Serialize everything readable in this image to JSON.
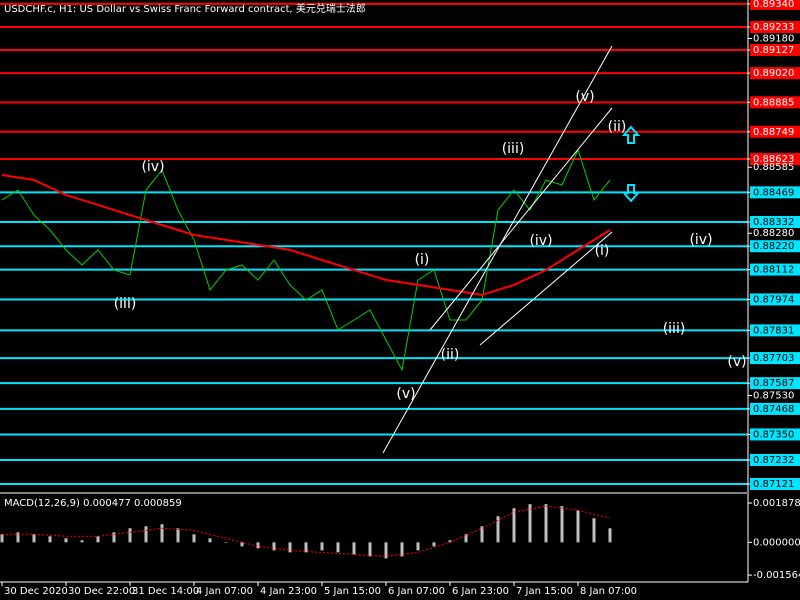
{
  "chart_data": [
    {
      "type": "line",
      "title": "USDCHF.c, H1:  US Dollar vs Swiss Franc Forward contract, 美元兑瑞士法郎",
      "xlim": [
        -0.5,
        186.5
      ],
      "ylim": [
        0.87084,
        0.89358
      ],
      "yticks": [
        {
          "value": 0.8934,
          "label": "0.89340"
        },
        0.89233,
        {
          "value": 0.8918,
          "label": "0.89180"
        },
        0.89127,
        {
          "value": 0.8902,
          "label": "0.89020"
        },
        0.88885,
        0.88749,
        0.88623,
        0.88585,
        0.88469,
        0.88332,
        {
          "value": 0.8828,
          "label": "0.88280"
        },
        {
          "value": 0.8822,
          "label": "0.88220"
        },
        0.88112,
        0.87974,
        0.87831,
        0.87703,
        0.87587,
        {
          "value": 0.8753,
          "label": "0.87530"
        },
        0.87468,
        {
          "value": 0.8735,
          "label": "0.87350"
        },
        0.87232,
        0.87121
      ],
      "hlines": [
        {
          "value": 0.8934,
          "color": "#ff0000"
        },
        {
          "value": 0.89233,
          "color": "#ff0000"
        },
        {
          "value": 0.89127,
          "color": "#ff0000"
        },
        {
          "value": 0.8902,
          "color": "#ff0000"
        },
        {
          "value": 0.88885,
          "color": "#ff0000"
        },
        {
          "value": 0.88749,
          "color": "#ff0000"
        },
        {
          "value": 0.88623,
          "color": "#ff0000"
        },
        {
          "value": 0.88469,
          "color": "#00e5ff"
        },
        {
          "value": 0.88332,
          "color": "#00e5ff"
        },
        {
          "value": 0.8822,
          "color": "#00e5ff"
        },
        {
          "value": 0.88112,
          "color": "#00e5ff"
        },
        {
          "value": 0.87974,
          "color": "#00e5ff"
        },
        {
          "value": 0.87831,
          "color": "#00e5ff"
        },
        {
          "value": 0.87703,
          "color": "#00e5ff"
        },
        {
          "value": 0.87587,
          "color": "#00e5ff"
        },
        {
          "value": 0.87468,
          "color": "#00e5ff"
        },
        {
          "value": 0.8735,
          "color": "#00e5ff"
        },
        {
          "value": 0.87232,
          "color": "#00e5ff"
        },
        {
          "value": 0.87121,
          "color": "#00e5ff"
        }
      ],
      "series": [
        {
          "color": "#00d000",
          "width": 1,
          "x": [
            0,
            4,
            8,
            12,
            16,
            20,
            24,
            28,
            32,
            36,
            40,
            44,
            48,
            52,
            56,
            60,
            64,
            68,
            72,
            76,
            80,
            84,
            88,
            92,
            96,
            100,
            104,
            108,
            112,
            116,
            120,
            124,
            128,
            132,
            136,
            140,
            144,
            148,
            152
          ],
          "values": [
            0.88434,
            0.8848,
            0.88364,
            0.88295,
            0.88203,
            0.88133,
            0.88203,
            0.8811,
            0.88087,
            0.8848,
            0.88572,
            0.88387,
            0.88249,
            0.88018,
            0.8811,
            0.88133,
            0.88064,
            0.88156,
            0.88041,
            0.87971,
            0.88018,
            0.87833,
            0.87879,
            0.87925,
            0.87787,
            0.87648,
            0.88064,
            0.8811,
            0.87879,
            0.87879,
            0.87971,
            0.88387,
            0.8848,
            0.88387,
            0.88526,
            0.88503,
            0.88665,
            0.88434,
            0.88526
          ]
        },
        {
          "color": "#ff0000",
          "width": 2,
          "x": [
            0,
            8,
            16,
            24,
            32,
            40,
            48,
            56,
            64,
            72,
            80,
            88,
            96,
            104,
            112,
            120,
            128,
            136,
            144,
            152
          ],
          "values": [
            0.88549,
            0.88526,
            0.88457,
            0.88411,
            0.88364,
            0.88318,
            0.88272,
            0.88249,
            0.88226,
            0.88203,
            0.88156,
            0.8811,
            0.88064,
            0.88041,
            0.88018,
            0.87995,
            0.88041,
            0.8811,
            0.88203,
            0.88295
          ]
        }
      ],
      "annotations": [
        "(v)",
        "(ii)",
        "(iii)",
        "(iv)",
        "(i)",
        "(iv)",
        "(i)",
        "(iv)",
        "(iii)",
        "(ii)",
        "(iii)",
        "(v)",
        "(v)"
      ]
    },
    {
      "type": "macd",
      "title": "MACD(12,26,9) 0.000477 0.000859",
      "xlim": [
        -0.5,
        186.5
      ],
      "ylim": [
        -0.0018,
        0.00231
      ],
      "yticks": [
        0.001878,
        {
          "value": 0,
          "label": "0.000000"
        },
        -0.001564
      ],
      "xticks": [
        {
          "value": 0,
          "label": "30 Dec 2020"
        },
        {
          "value": 16,
          "label": "30 Dec 22:00"
        },
        {
          "value": 32,
          "label": "31 Dec 14:00"
        },
        {
          "value": 48,
          "label": "4 Jan 07:00"
        },
        {
          "value": 64,
          "label": "4 Jan 23:00"
        },
        {
          "value": 80,
          "label": "5 Jan 15:00"
        },
        {
          "value": 96,
          "label": "6 Jan 07:00"
        },
        {
          "value": 112,
          "label": "6 Jan 23:00"
        },
        {
          "value": 128,
          "label": "7 Jan 15:00"
        },
        {
          "value": 144,
          "label": "8 Jan 07:00"
        }
      ],
      "series": [
        {
          "kind": "histogram",
          "color": "#c0c0c0",
          "x": [
            0,
            4,
            8,
            12,
            16,
            20,
            24,
            28,
            32,
            36,
            40,
            44,
            48,
            52,
            56,
            60,
            64,
            68,
            72,
            76,
            80,
            84,
            88,
            92,
            96,
            100,
            104,
            108,
            112,
            116,
            120,
            124,
            128,
            132,
            136,
            140,
            144,
            148,
            152
          ],
          "values": [
            0.000384,
            0.00048,
            0.000384,
            0.000288,
            0.000192,
            9.6e-05,
            0.000288,
            0.00048,
            0.000672,
            0.000768,
            0.000864,
            0.000672,
            0.000384,
            0.000192,
            0,
            -0.000192,
            -0.000288,
            -0.000384,
            -0.00048,
            -0.00048,
            -0.000384,
            -0.00048,
            -0.000576,
            -0.000672,
            -0.000768,
            -0.000672,
            -0.000384,
            -0.000192,
            9.6e-05,
            0.000384,
            0.000768,
            0.001248,
            0.001632,
            0.001824,
            0.001824,
            0.001728,
            0.001536,
            0.001152,
            0.000672
          ]
        },
        {
          "kind": "dotted",
          "color": "#ff0000",
          "x": [
            0,
            8,
            16,
            24,
            32,
            40,
            48,
            56,
            64,
            72,
            80,
            88,
            96,
            104,
            112,
            120,
            128,
            136,
            144,
            152
          ],
          "values": [
            0.000384,
            0.000384,
            0.000288,
            0.000288,
            0.00048,
            0.000672,
            0.000576,
            0.000192,
            -0.000192,
            -0.000384,
            -0.00048,
            -0.000576,
            -0.000672,
            -0.00048,
            0,
            0.000672,
            0.00144,
            0.001728,
            0.001536,
            0.001152
          ]
        }
      ]
    }
  ]
}
